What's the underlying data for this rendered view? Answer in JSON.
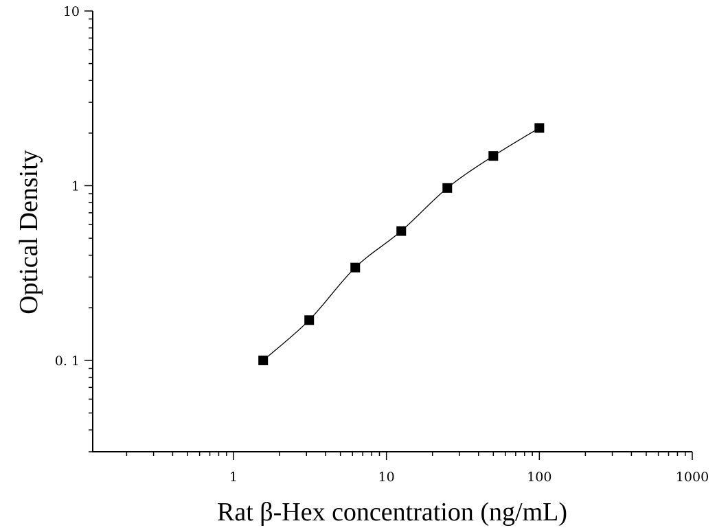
{
  "chart_data": {
    "type": "scatter",
    "title": "",
    "xlabel": "Rat β-Hex concentration (ng/mL)",
    "ylabel": "Optical Density",
    "x_scale": "log",
    "y_scale": "log",
    "xlim": [
      0.12,
      1000
    ],
    "ylim": [
      0.03,
      10
    ],
    "x_ticks": [
      {
        "value": 1,
        "label": "1"
      },
      {
        "value": 10,
        "label": "10"
      },
      {
        "value": 100,
        "label": "100"
      },
      {
        "value": 1000,
        "label": "1000"
      }
    ],
    "y_ticks": [
      {
        "value": 0.1,
        "label": "0. 1"
      },
      {
        "value": 1,
        "label": "1"
      },
      {
        "value": 10,
        "label": "10"
      }
    ],
    "grid": false,
    "legend": "none",
    "marker": "square",
    "color": "#000000",
    "fit_curve": true,
    "series": [
      {
        "x": [
          1.5625,
          3.125,
          6.25,
          12.5,
          25,
          50,
          100
        ],
        "y": [
          0.1,
          0.17,
          0.34,
          0.55,
          0.97,
          1.48,
          2.14
        ]
      }
    ]
  }
}
